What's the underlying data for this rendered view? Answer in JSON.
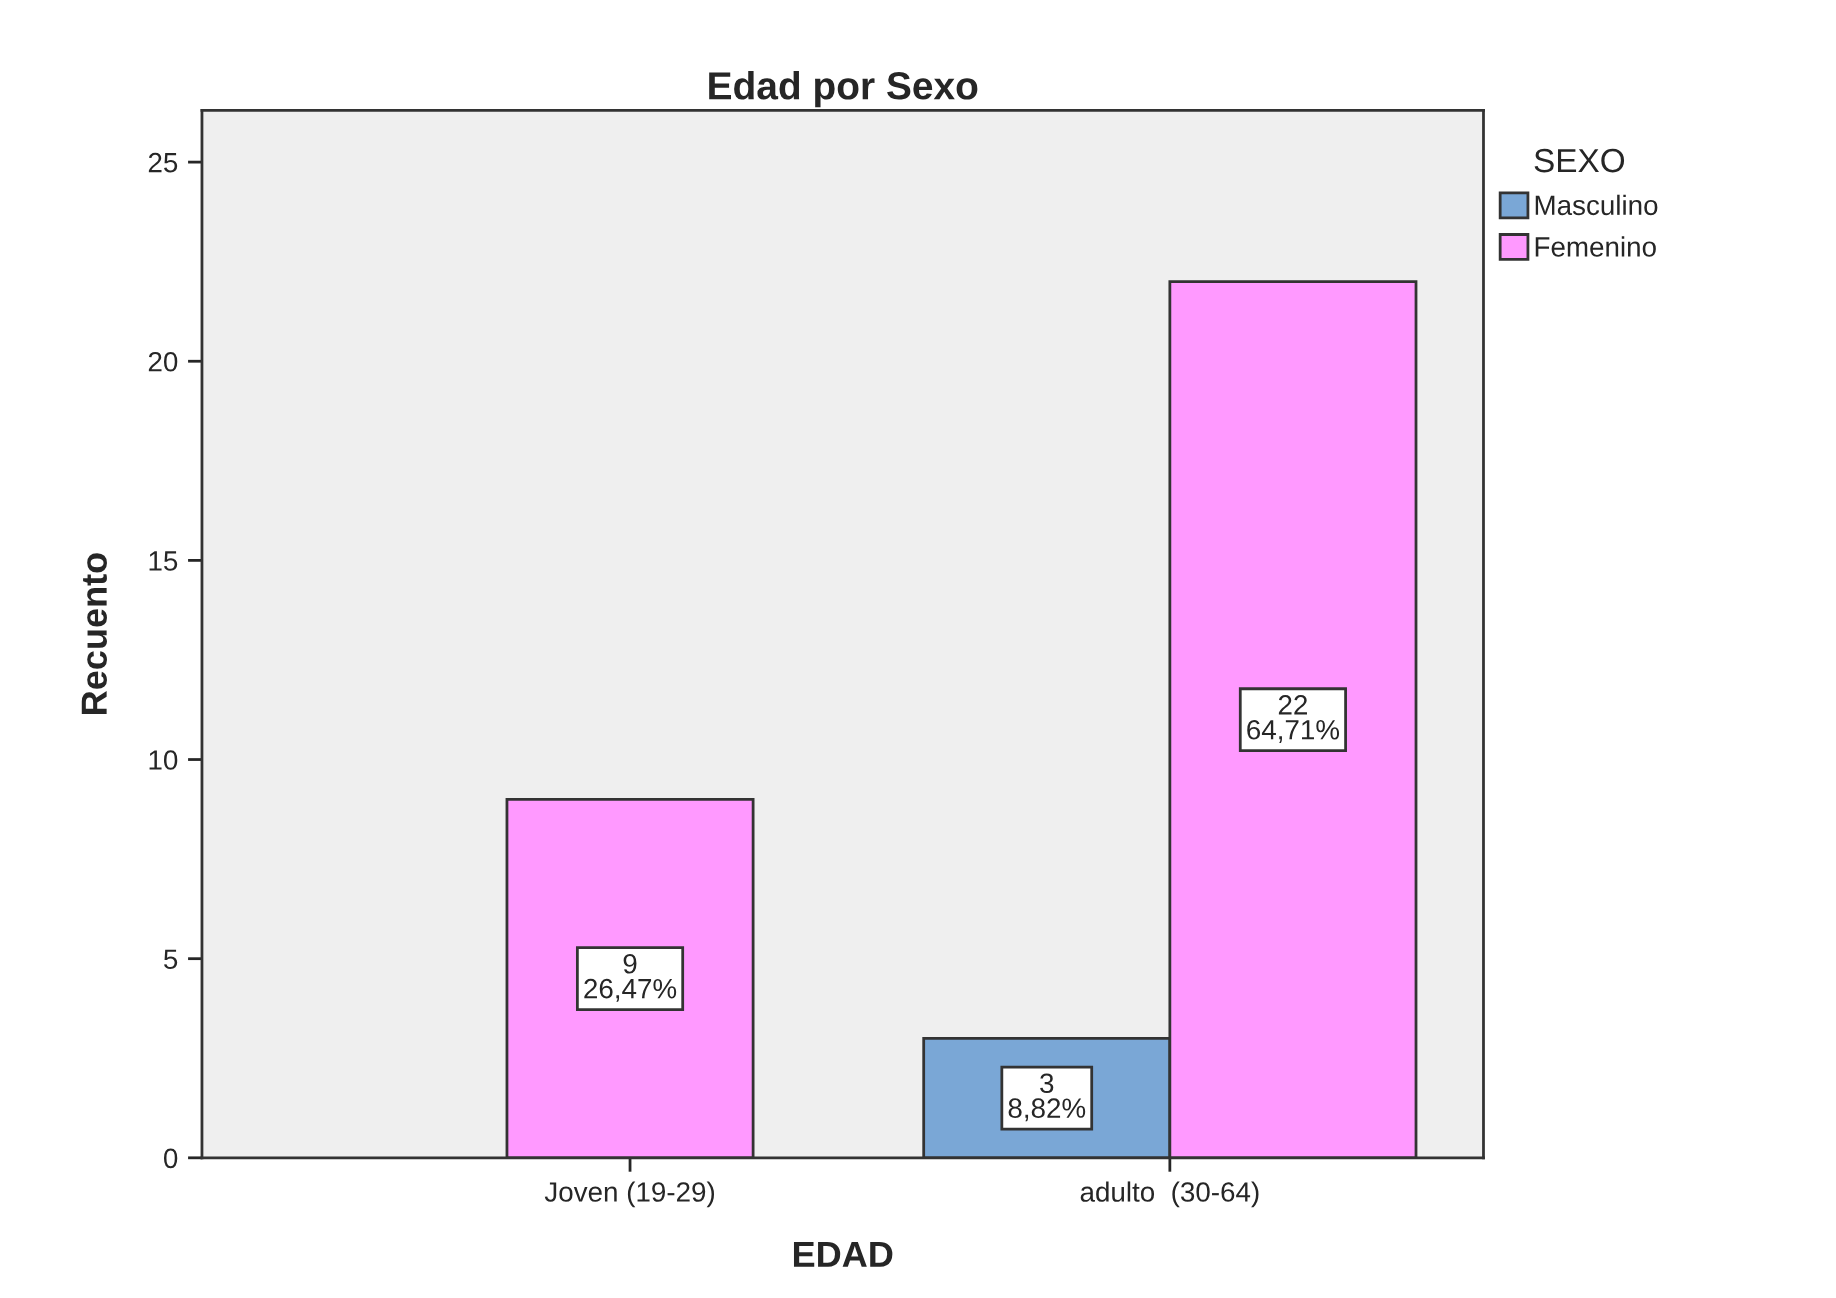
{
  "chart_data": {
    "type": "bar",
    "title": "Edad por Sexo",
    "xlabel": "EDAD",
    "ylabel": "Recuento",
    "legend_title": "SEXO",
    "categories": [
      "Joven (19-29)",
      "adulto  (30-64)"
    ],
    "series": [
      {
        "name": "Masculino",
        "color": "#7aa7d6",
        "values": [
          null,
          3
        ],
        "value_labels": [
          null,
          "3\n8,82%"
        ]
      },
      {
        "name": "Femenino",
        "color": "#ff99ff",
        "values": [
          9,
          22
        ],
        "value_labels": [
          "9\n26,47%",
          "22\n64,71%"
        ]
      }
    ],
    "ylim": [
      0,
      26.3
    ],
    "yticks": [
      0,
      5,
      10,
      15,
      20,
      25
    ],
    "grid": false,
    "legend": "top right"
  }
}
